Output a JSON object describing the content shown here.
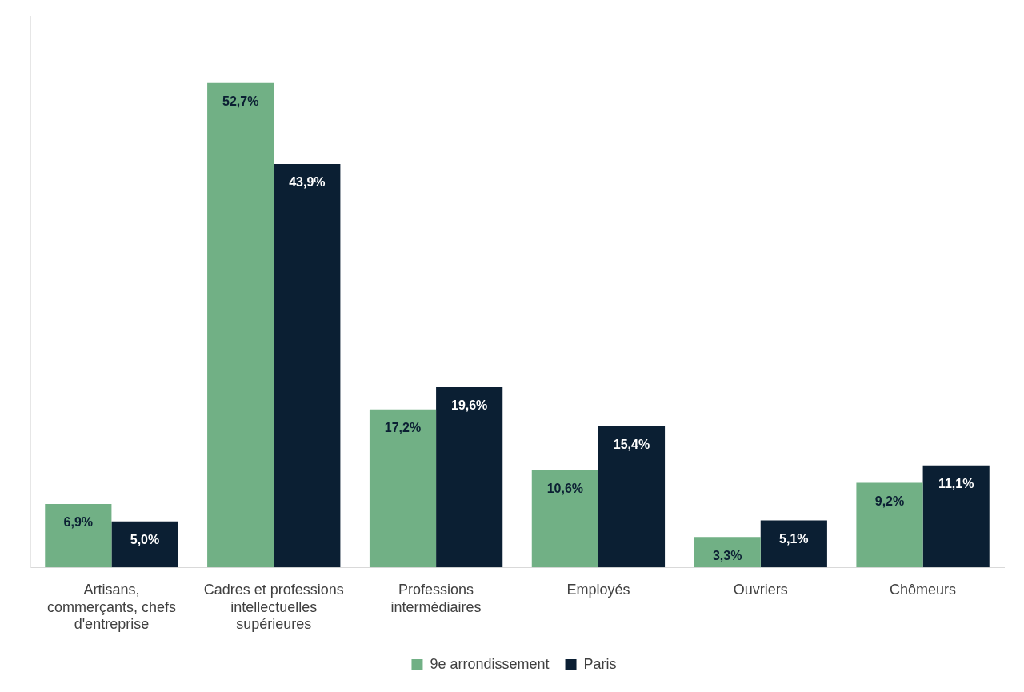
{
  "chart_data": {
    "type": "bar",
    "categories": [
      "Artisans, commerçants, chefs d'entreprise",
      "Cadres et professions intellectuelles supérieures",
      "Professions intermédiaires",
      "Employés",
      "Ouvriers",
      "Chômeurs"
    ],
    "series": [
      {
        "name": "9e arrondissement",
        "color": "#71b085",
        "values": [
          6.9,
          52.7,
          17.2,
          10.6,
          3.3,
          9.2
        ],
        "value_labels": [
          "6,9%",
          "52,7%",
          "17,2%",
          "10,6%",
          "3,3%",
          "9,2%"
        ]
      },
      {
        "name": "Paris",
        "color": "#0b1f33",
        "values": [
          5.0,
          43.9,
          19.6,
          15.4,
          5.1,
          11.1
        ],
        "value_labels": [
          "5,0%",
          "43,9%",
          "19,6%",
          "15,4%",
          "5,1%",
          "11,1%"
        ]
      }
    ],
    "ylim": [
      0,
      60
    ],
    "grid": false,
    "legend": "bottom",
    "data_labels": true,
    "tick_labels": "x"
  }
}
